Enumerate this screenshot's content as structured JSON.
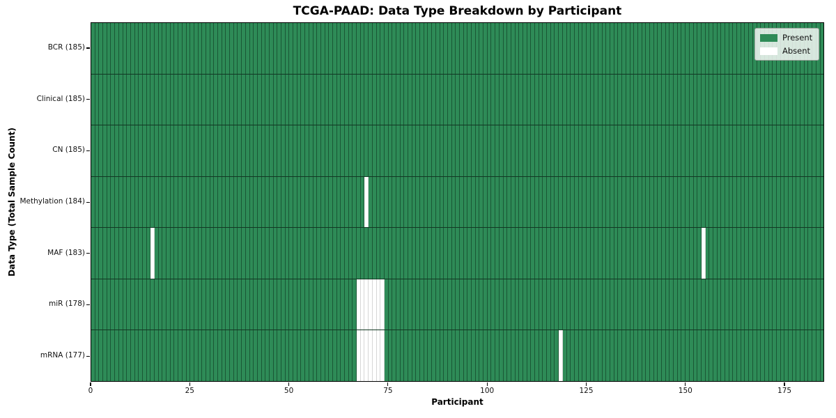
{
  "chart_data": {
    "type": "heatmap",
    "title": "TCGA-PAAD: Data Type Breakdown by Participant",
    "xlabel": "Participant",
    "ylabel": "Data Type (Total Sample Count)",
    "x_ticks": [
      0,
      25,
      50,
      75,
      100,
      125,
      150,
      175
    ],
    "xlim": [
      0,
      185
    ],
    "n_participants": 185,
    "grid": true,
    "legend": {
      "position": "upper right",
      "entries": [
        {
          "label": "Present",
          "color": "#2e8b57"
        },
        {
          "label": "Absent",
          "color": "#ffffff"
        }
      ]
    },
    "colors": {
      "present": "#2e8b57",
      "absent": "#ffffff",
      "frame": "#000000"
    },
    "rows": [
      {
        "name": "BCR",
        "label": "BCR (185)",
        "total_samples": 185,
        "absent_participants": []
      },
      {
        "name": "Clinical",
        "label": "Clinical (185)",
        "total_samples": 185,
        "absent_participants": []
      },
      {
        "name": "CN",
        "label": "CN (185)",
        "total_samples": 185,
        "absent_participants": []
      },
      {
        "name": "Methylation",
        "label": "Methylation (184)",
        "total_samples": 184,
        "absent_participants": [
          69
        ]
      },
      {
        "name": "MAF",
        "label": "MAF (183)",
        "total_samples": 183,
        "absent_participants": [
          15,
          154
        ]
      },
      {
        "name": "miR",
        "label": "miR (178)",
        "total_samples": 178,
        "absent_participants": [
          67,
          68,
          69,
          70,
          71,
          72,
          73
        ]
      },
      {
        "name": "mRNA",
        "label": "mRNA (177)",
        "total_samples": 177,
        "absent_participants": [
          67,
          68,
          69,
          70,
          71,
          72,
          73,
          118
        ]
      }
    ]
  }
}
